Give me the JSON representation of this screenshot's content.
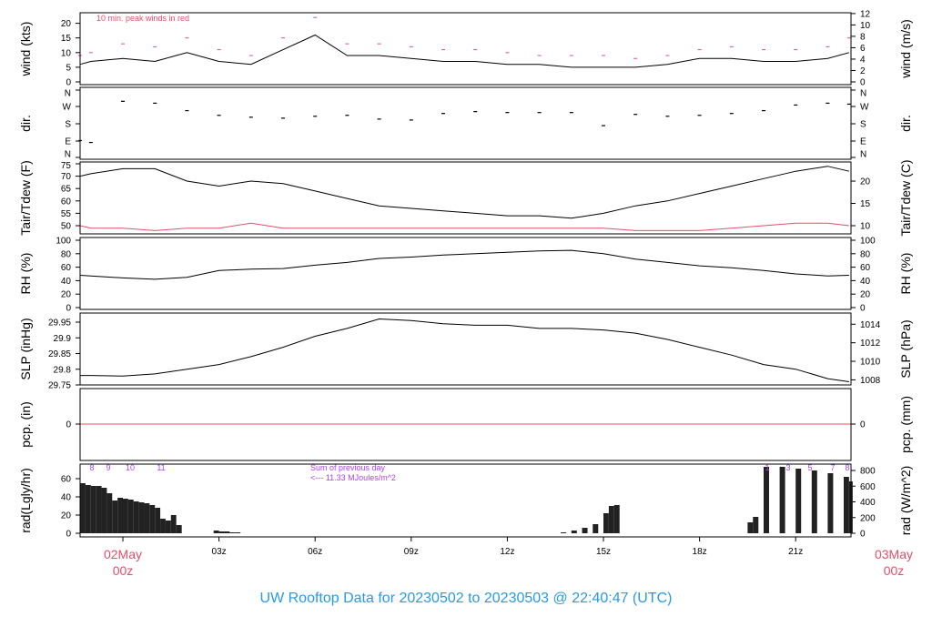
{
  "title": "UW Rooftop Data for 20230502  to  20230503 @ 22:40:47  (UTC)",
  "colors": {
    "line": "#000000",
    "peak": "#e0506a",
    "dew": "#e0506a",
    "date": "#e0506a",
    "annot": "#b040f0",
    "title": "#2a9ae0"
  },
  "chart_data": [
    {
      "type": "line",
      "id": "wind",
      "ylabel": "wind (kts)",
      "ylabel_right": "wind (m/s)",
      "ylim": [
        0,
        23
      ],
      "yticks": [
        0,
        5,
        10,
        15,
        20
      ],
      "yticks_right": [
        0,
        2,
        4,
        6,
        8,
        10,
        12
      ],
      "annotation": "10 min. peak winds in red",
      "x": [
        "01May 22:40",
        "01May 23:00",
        "02May 00:00",
        "02May 01:00",
        "02May 02:00",
        "02May 03:00",
        "02May 04:00",
        "02May 05:00",
        "02May 06:00",
        "02May 07:00",
        "02May 08:00",
        "02May 09:00",
        "02May 10:00",
        "02May 11:00",
        "02May 12:00",
        "02May 13:00",
        "02May 14:00",
        "02May 15:00",
        "02May 16:00",
        "02May 17:00",
        "02May 18:00",
        "02May 19:00",
        "02May 20:00",
        "02May 21:00",
        "02May 22:00",
        "02May 22:40"
      ],
      "series": [
        {
          "values": [
            6,
            7,
            8,
            7,
            10,
            7,
            6,
            11,
            16,
            9,
            9,
            8,
            7,
            7,
            6,
            6,
            5,
            5,
            5,
            6,
            8,
            8,
            7,
            7,
            8,
            10
          ]
        },
        {
          "values": [
            9,
            10,
            13,
            12,
            15,
            11,
            9,
            15,
            22,
            13,
            13,
            12,
            11,
            11,
            10,
            9,
            9,
            9,
            8,
            9,
            11,
            12,
            11,
            11,
            12,
            15
          ]
        }
      ]
    },
    {
      "type": "scatter",
      "id": "dir",
      "ylabel": "dir.",
      "ylabel_right": "dir.",
      "ytick_labels": [
        "N",
        "E",
        "S",
        "W",
        "N"
      ],
      "ylim": [
        0,
        360
      ],
      "x": [
        "01May 22:40",
        "01May 23:00",
        "02May 00:00",
        "02May 01:00",
        "02May 02:00",
        "02May 03:00",
        "02May 04:00",
        "02May 05:00",
        "02May 06:00",
        "02May 07:00",
        "02May 08:00",
        "02May 09:00",
        "02May 10:00",
        "02May 11:00",
        "02May 12:00",
        "02May 13:00",
        "02May 14:00",
        "02May 15:00",
        "02May 16:00",
        "02May 17:00",
        "02May 18:00",
        "02May 19:00",
        "02May 20:00",
        "02May 21:00",
        "02May 22:00",
        "02May 22:40"
      ],
      "values": [
        90,
        80,
        300,
        290,
        250,
        225,
        215,
        210,
        220,
        225,
        205,
        200,
        235,
        245,
        240,
        240,
        240,
        170,
        230,
        220,
        225,
        235,
        250,
        280,
        290,
        285
      ]
    },
    {
      "type": "line",
      "id": "temp",
      "ylabel": "Tair/Tdew (F)",
      "ylabel_right": "Tair/Tdew (C)",
      "ylim": [
        45,
        75
      ],
      "yticks": [
        50,
        55,
        60,
        65,
        70,
        75
      ],
      "yticks_right": [
        10,
        15,
        20
      ],
      "x": [
        "01May 22:40",
        "01May 23:00",
        "02May 00:00",
        "02May 01:00",
        "02May 02:00",
        "02May 03:00",
        "02May 04:00",
        "02May 05:00",
        "02May 06:00",
        "02May 07:00",
        "02May 08:00",
        "02May 09:00",
        "02May 10:00",
        "02May 11:00",
        "02May 12:00",
        "02May 13:00",
        "02May 14:00",
        "02May 15:00",
        "02May 16:00",
        "02May 17:00",
        "02May 18:00",
        "02May 19:00",
        "02May 20:00",
        "02May 21:00",
        "02May 22:00",
        "02May 22:40"
      ],
      "series": [
        {
          "values": [
            70,
            71,
            73,
            73,
            68,
            66,
            68,
            67,
            64,
            61,
            58,
            57,
            56,
            55,
            54,
            54,
            53,
            55,
            58,
            60,
            63,
            66,
            69,
            72,
            74,
            72
          ]
        },
        {
          "values": [
            50,
            49,
            49,
            48,
            49,
            49,
            51,
            49,
            49,
            49,
            49,
            49,
            49,
            49,
            49,
            49,
            49,
            49,
            48,
            48,
            48,
            49,
            50,
            51,
            51,
            50
          ]
        }
      ]
    },
    {
      "type": "line",
      "id": "rh",
      "ylabel": "RH (%)",
      "ylabel_right": "RH (%)",
      "ylim": [
        0,
        100
      ],
      "yticks": [
        0,
        20,
        40,
        60,
        80,
        100
      ],
      "yticks_right": [
        0,
        20,
        40,
        60,
        80,
        100
      ],
      "x": [
        "01May 22:40",
        "01May 23:00",
        "02May 00:00",
        "02May 01:00",
        "02May 02:00",
        "02May 03:00",
        "02May 04:00",
        "02May 05:00",
        "02May 06:00",
        "02May 07:00",
        "02May 08:00",
        "02May 09:00",
        "02May 10:00",
        "02May 11:00",
        "02May 12:00",
        "02May 13:00",
        "02May 14:00",
        "02May 15:00",
        "02May 16:00",
        "02May 17:00",
        "02May 18:00",
        "02May 19:00",
        "02May 20:00",
        "02May 21:00",
        "02May 22:00",
        "02May 22:40"
      ],
      "values": [
        48,
        47,
        44,
        42,
        45,
        55,
        57,
        58,
        63,
        67,
        73,
        75,
        78,
        80,
        82,
        84,
        85,
        80,
        72,
        67,
        62,
        59,
        55,
        50,
        47,
        48
      ]
    },
    {
      "type": "line",
      "id": "slp",
      "ylabel": "SLP (inHg)",
      "ylabel_right": "SLP (hPa)",
      "ylim": [
        29.75,
        29.965
      ],
      "yticks": [
        29.75,
        29.8,
        29.85,
        29.9,
        29.95
      ],
      "yticks_right": [
        1008,
        1010,
        1012,
        1014
      ],
      "x": [
        "01May 22:40",
        "01May 23:00",
        "02May 00:00",
        "02May 01:00",
        "02May 02:00",
        "02May 03:00",
        "02May 04:00",
        "02May 05:00",
        "02May 06:00",
        "02May 07:00",
        "02May 08:00",
        "02May 09:00",
        "02May 10:00",
        "02May 11:00",
        "02May 12:00",
        "02May 13:00",
        "02May 14:00",
        "02May 15:00",
        "02May 16:00",
        "02May 17:00",
        "02May 18:00",
        "02May 19:00",
        "02May 20:00",
        "02May 21:00",
        "02May 22:00",
        "02May 22:40"
      ],
      "values": [
        29.78,
        29.78,
        29.778,
        29.785,
        29.8,
        29.815,
        29.84,
        29.87,
        29.905,
        29.93,
        29.96,
        29.955,
        29.945,
        29.94,
        29.94,
        29.93,
        29.93,
        29.925,
        29.915,
        29.895,
        29.87,
        29.845,
        29.815,
        29.8,
        29.77,
        29.76
      ]
    },
    {
      "type": "line",
      "id": "pcp",
      "ylabel": "pcp. (in)",
      "ylabel_right": "pcp. (mm)",
      "ylim": [
        -1,
        1
      ],
      "yticks": [
        0
      ],
      "yticks_right": [
        0
      ],
      "x": [
        "01May 22:40",
        "02May 22:40"
      ],
      "values": [
        0,
        0
      ]
    },
    {
      "type": "bar",
      "id": "rad",
      "ylabel": "rad(Lgly/hr)",
      "ylabel_right": "rad (W/m^2)",
      "ylim": [
        -1,
        76
      ],
      "yticks": [
        0,
        20,
        40,
        60
      ],
      "yticks_right": [
        0,
        200,
        400,
        600,
        800
      ],
      "annotation": [
        "Sum of previous day",
        "<--- 11.33 MJoules/m^2"
      ],
      "hour_marks_left": [
        "8",
        "9",
        "10",
        "11"
      ],
      "hour_marks_right": [
        "1",
        "3",
        "5",
        "7",
        "8"
      ],
      "x": [
        "01May 22:40",
        "01May 22:50",
        "01May 23:00",
        "01May 23:10",
        "01May 23:20",
        "01May 23:30",
        "01May 23:40",
        "01May 23:50",
        "02May 00:00",
        "02May 00:10",
        "02May 00:20",
        "02May 00:30",
        "02May 00:40",
        "02May 00:50",
        "02May 01:00",
        "02May 01:10",
        "02May 01:20",
        "02May 01:30",
        "02May 01:40",
        "02May 02:50",
        "02May 03:00",
        "02May 03:10",
        "02May 03:20",
        "02May 03:30",
        "02May 13:40",
        "02May 14:00",
        "02May 14:20",
        "02May 14:40",
        "02May 15:00",
        "02May 15:10",
        "02May 15:20",
        "02May 19:30",
        "02May 19:40",
        "02May 20:00",
        "02May 20:30",
        "02May 21:00",
        "02May 21:30",
        "02May 22:00",
        "02May 22:30",
        "02May 22:40"
      ],
      "values": [
        55,
        53,
        52,
        52,
        50,
        44,
        36,
        39,
        38,
        37,
        35,
        34,
        33,
        31,
        28,
        16,
        14,
        20,
        9,
        3,
        2,
        2,
        1,
        1,
        1,
        3,
        6,
        10,
        22,
        30,
        31,
        12,
        18,
        73,
        73,
        71,
        69,
        66,
        62,
        57
      ]
    }
  ],
  "xaxis": {
    "ticks": [
      "03z",
      "06z",
      "09z",
      "12z",
      "15z",
      "18z",
      "21z"
    ],
    "start_date": "02May",
    "start_hour": "00z",
    "end_date": "03May",
    "end_hour": "00z"
  }
}
